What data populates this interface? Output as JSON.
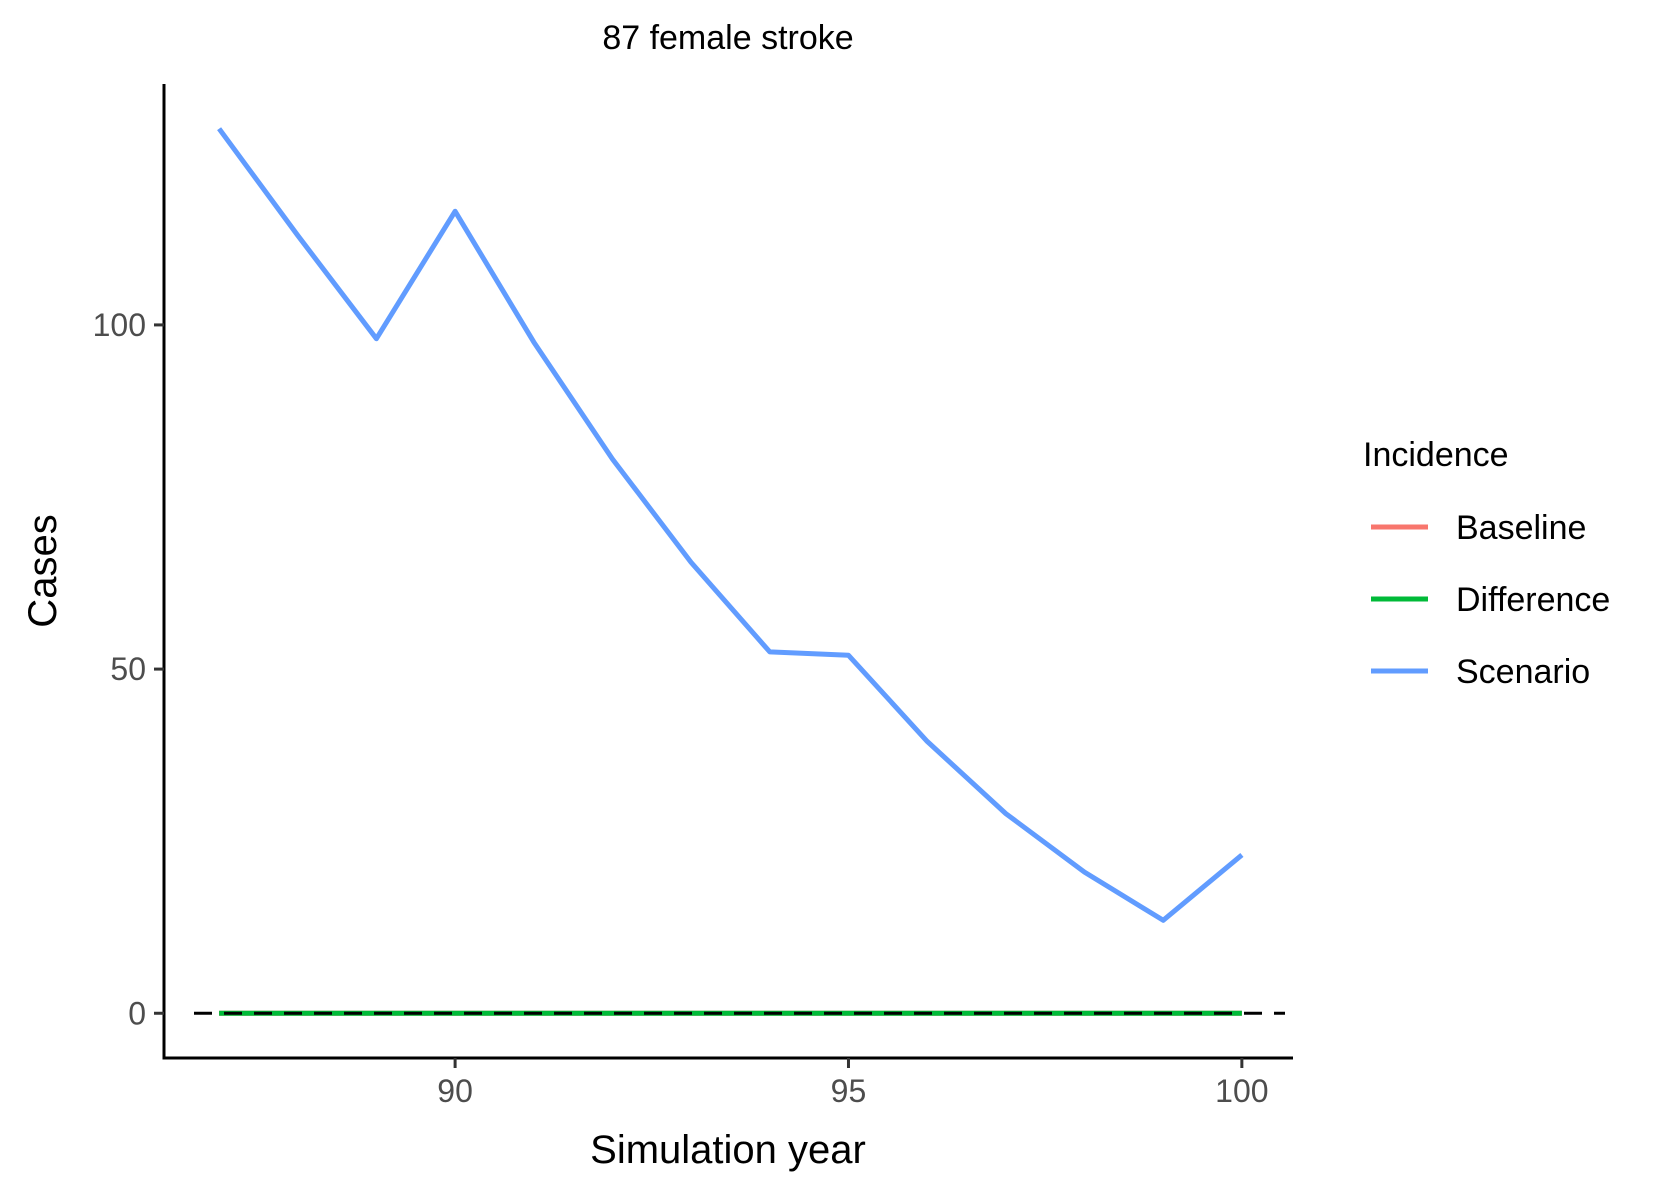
{
  "chart_data": {
    "type": "line",
    "title": "87 female stroke",
    "xlabel": "Simulation year",
    "ylabel": "Cases",
    "xlim": [
      86.3,
      100.65
    ],
    "ylim": [
      -6.5,
      135
    ],
    "x_ticks": [
      90,
      95,
      100
    ],
    "y_ticks": [
      0,
      50,
      100
    ],
    "x": [
      87,
      88,
      89,
      90,
      91,
      92,
      93,
      94,
      95,
      96,
      97,
      98,
      99,
      100
    ],
    "reference_line": {
      "y": 0,
      "style": "dashed",
      "color": "#000000"
    },
    "legend": {
      "title": "Incidence",
      "position": "right"
    },
    "grid": false,
    "series": [
      {
        "name": "Baseline",
        "color": "#F8766D",
        "values": [
          0,
          0,
          0,
          0,
          0,
          0,
          0,
          0,
          0,
          0,
          0,
          0,
          0,
          0
        ]
      },
      {
        "name": "Difference",
        "color": "#00BA38",
        "values": [
          0,
          0,
          0,
          0,
          0,
          0,
          0,
          0,
          0,
          0,
          0,
          0,
          0,
          0
        ]
      },
      {
        "name": "Scenario",
        "color": "#619CFF",
        "values": [
          128.5,
          113,
          98,
          116.5,
          97.5,
          80.5,
          65.5,
          52.5,
          52,
          39.5,
          29,
          20.5,
          13.5,
          23
        ]
      }
    ]
  }
}
